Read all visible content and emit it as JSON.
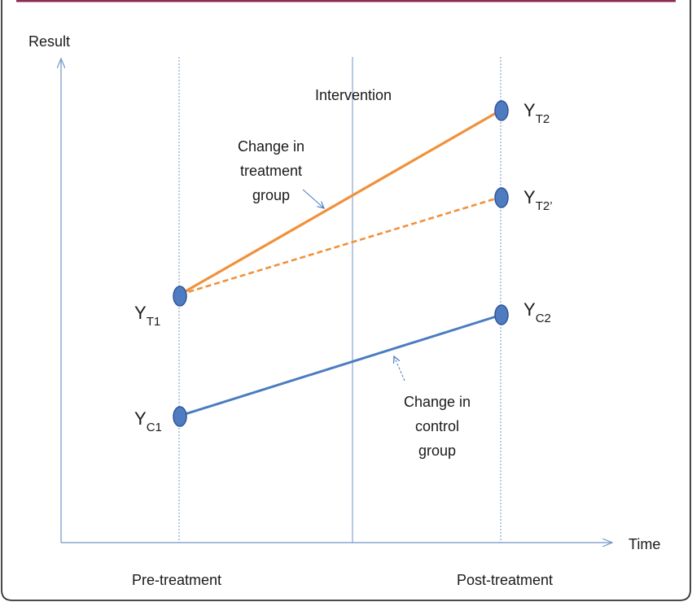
{
  "axes": {
    "y_label": "Result",
    "x_label": "Time"
  },
  "periods": {
    "pre": "Pre-treatment",
    "post": "Post-treatment"
  },
  "intervention_label": "Intervention",
  "annotations": {
    "treatment": [
      "Change in",
      "treatment",
      "group"
    ],
    "control": [
      "Change in",
      "control",
      "group"
    ]
  },
  "points": {
    "yt1": {
      "main": "Y",
      "sub": "T1"
    },
    "yt2": {
      "main": "Y",
      "sub": "T2"
    },
    "yt2p": {
      "main": "Y",
      "sub": "T2’"
    },
    "yc1": {
      "main": "Y",
      "sub": "C1"
    },
    "yc2": {
      "main": "Y",
      "sub": "C2"
    }
  },
  "colors": {
    "frame": "#8b2a52",
    "axis": "#6f95c8",
    "treatment": "#f0913a",
    "control": "#4a7cc0",
    "marker_fill": "#4f7cc0",
    "marker_stroke": "#2f5597"
  }
}
